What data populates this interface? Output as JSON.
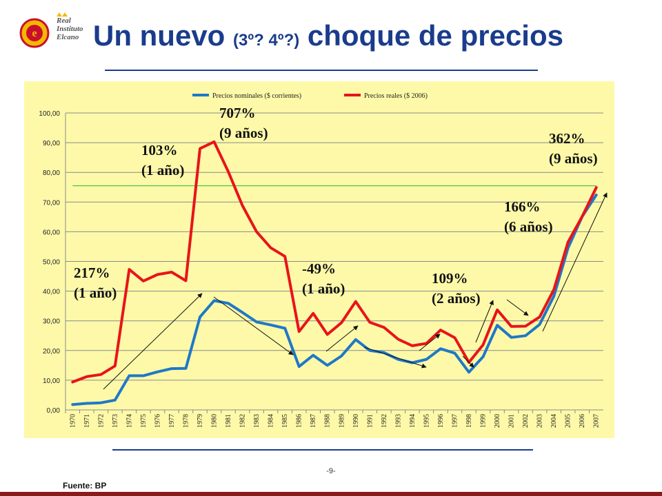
{
  "header": {
    "title_main": "Un nuevo",
    "title_paren": "(3º? 4º?)",
    "title_end": "choque de precios",
    "logo_lines": [
      "Real",
      "Instituto",
      "Elcano"
    ]
  },
  "footer": {
    "page_number": "-9-",
    "source": "Fuente: BP"
  },
  "colors": {
    "nominal": "#1f78c8",
    "real": "#e8141a",
    "reference_line": "#4fc34f",
    "panel": "#fdf9a8",
    "title": "#1a3c8c"
  },
  "chart_data": {
    "type": "line",
    "title": "",
    "xlabel": "",
    "ylabel": "",
    "ylim": [
      0,
      100
    ],
    "yticks": [
      "0,00",
      "10,00",
      "20,00",
      "30,00",
      "40,00",
      "50,00",
      "60,00",
      "70,00",
      "80,00",
      "90,00",
      "100,00"
    ],
    "grid": true,
    "legend_position": "top",
    "categories": [
      "1970",
      "1971",
      "1972",
      "1973",
      "1974",
      "1975",
      "1976",
      "1977",
      "1978",
      "1979",
      "1980",
      "1981",
      "1982",
      "1983",
      "1984",
      "1985",
      "1986",
      "1987",
      "1988",
      "1989",
      "1990",
      "1991",
      "1992",
      "1993",
      "1994",
      "1995",
      "1996",
      "1997",
      "1998",
      "1999",
      "2000",
      "2001",
      "2002",
      "2003",
      "2004",
      "2005",
      "2006",
      "2007"
    ],
    "series": [
      {
        "name": "Precios nominales ($ corrientes)",
        "values": [
          1.8,
          2.2,
          2.4,
          3.3,
          11.5,
          11.5,
          12.8,
          13.9,
          14.0,
          31.3,
          36.8,
          35.9,
          32.8,
          29.6,
          28.6,
          27.5,
          14.6,
          18.4,
          15.0,
          18.2,
          23.7,
          20.0,
          19.3,
          17.0,
          15.9,
          17.0,
          20.6,
          19.1,
          12.7,
          17.9,
          28.5,
          24.4,
          25.0,
          28.8,
          38.3,
          54.5,
          65.1,
          72.4
        ]
      },
      {
        "name": "Precios reales ($ 2006)",
        "values": [
          9.4,
          11.2,
          11.9,
          14.8,
          47.3,
          43.4,
          45.6,
          46.4,
          43.5,
          88.0,
          90.3,
          80.2,
          68.8,
          60.0,
          54.6,
          51.7,
          26.4,
          32.5,
          25.4,
          29.4,
          36.5,
          29.5,
          27.8,
          23.8,
          21.6,
          22.4,
          26.9,
          24.3,
          16.0,
          21.9,
          33.7,
          28.1,
          28.2,
          31.3,
          40.5,
          56.5,
          65.1,
          74.9
        ]
      }
    ],
    "reference_line_value": 75.5,
    "annotations": [
      {
        "line1": "217%",
        "line2": "(1 año)"
      },
      {
        "line1": "103%",
        "line2": "(1 año)"
      },
      {
        "line1": "707%",
        "line2": "(9 años)"
      },
      {
        "line1": "-49%",
        "line2": "(1 año)"
      },
      {
        "line1": "109%",
        "line2": "(2 años)"
      },
      {
        "line1": "166%",
        "line2": "(6 años)"
      },
      {
        "line1": "362%",
        "line2": "(9 años)"
      }
    ]
  }
}
